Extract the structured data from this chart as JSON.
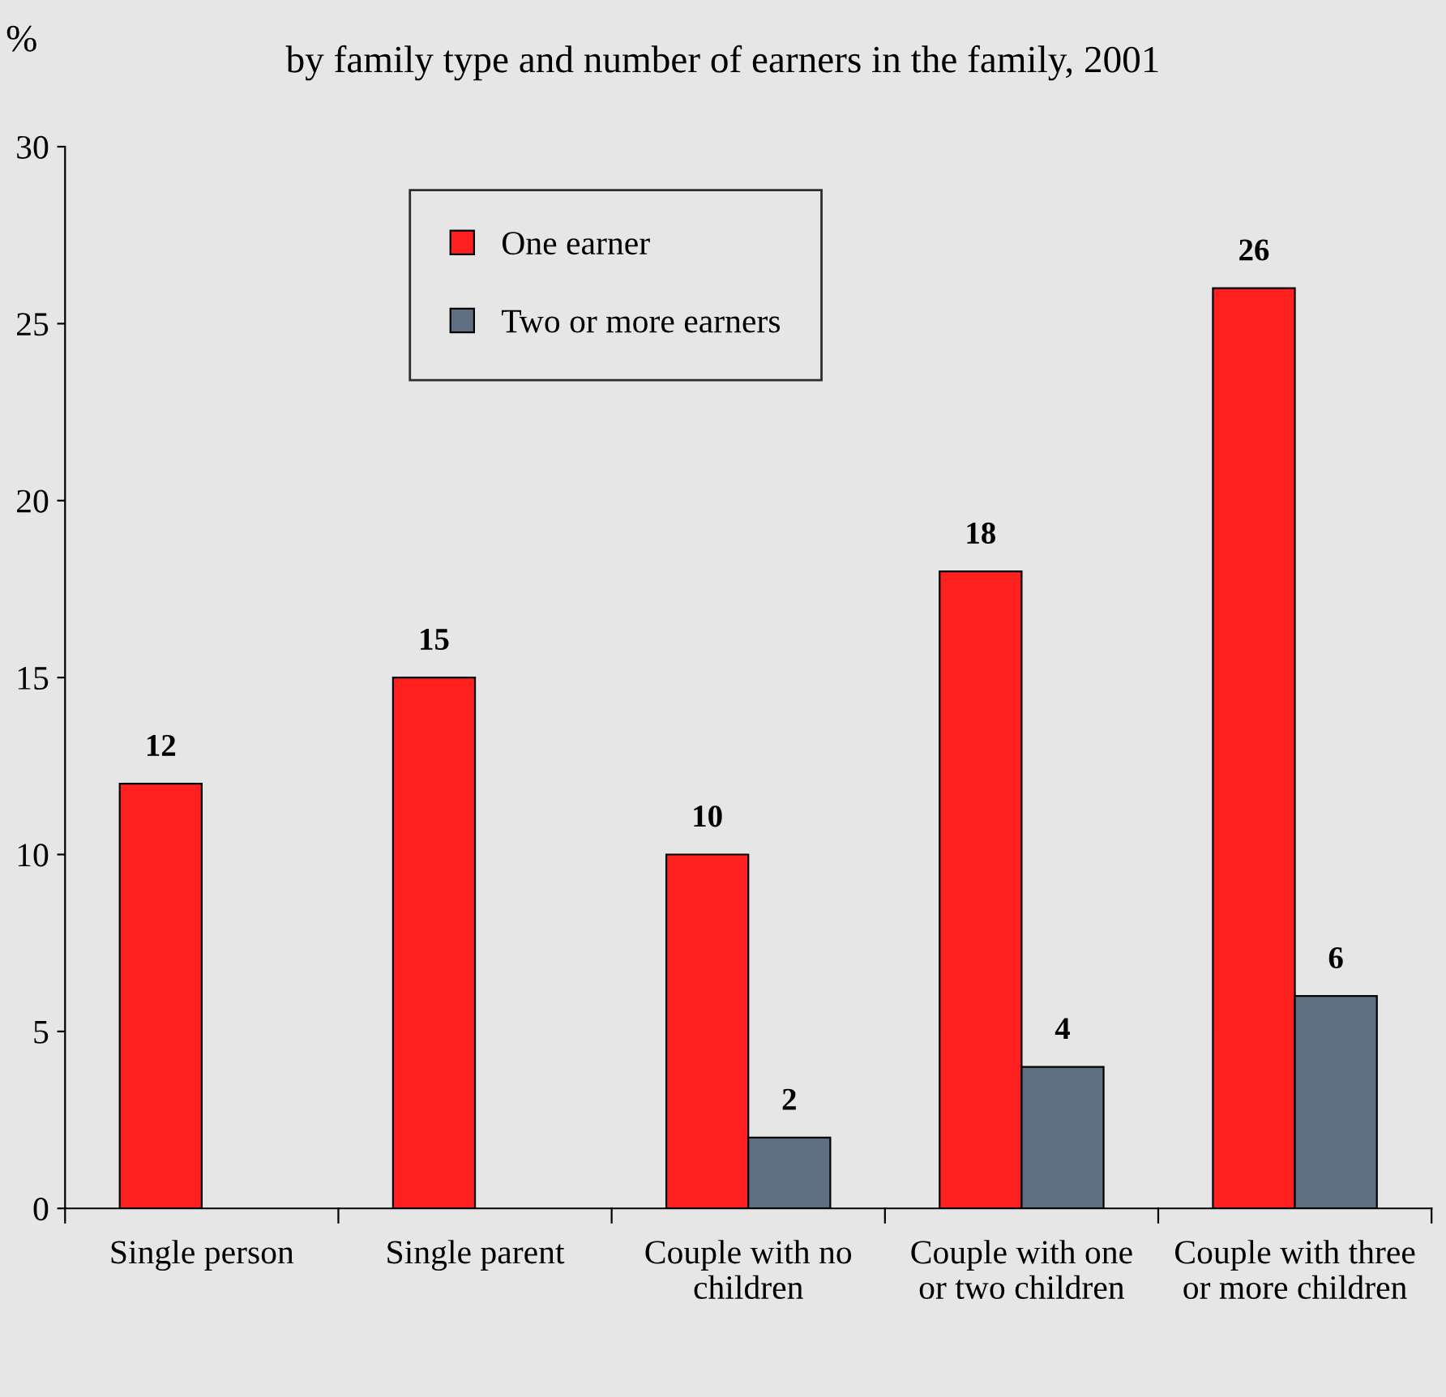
{
  "chart_data": {
    "type": "bar",
    "title": "by family type and number of earners in the family, 2001",
    "ylabel": "%",
    "categories": [
      "Single person",
      "Single parent",
      "Couple with no\nchildren",
      "Couple with one\nor two children",
      "Couple with three\nor more children"
    ],
    "series": [
      {
        "name": "One earner",
        "color": "#ff2020",
        "values": [
          12,
          15,
          10,
          18,
          26
        ]
      },
      {
        "name": "Two or more earners",
        "color": "#5f6f82",
        "values": [
          null,
          null,
          2,
          4,
          6
        ]
      }
    ],
    "ylim": [
      0,
      30
    ],
    "yticks": [
      0,
      5,
      10,
      15,
      20,
      25,
      30
    ],
    "data_labels": true,
    "legend": "top left",
    "grid": false
  }
}
